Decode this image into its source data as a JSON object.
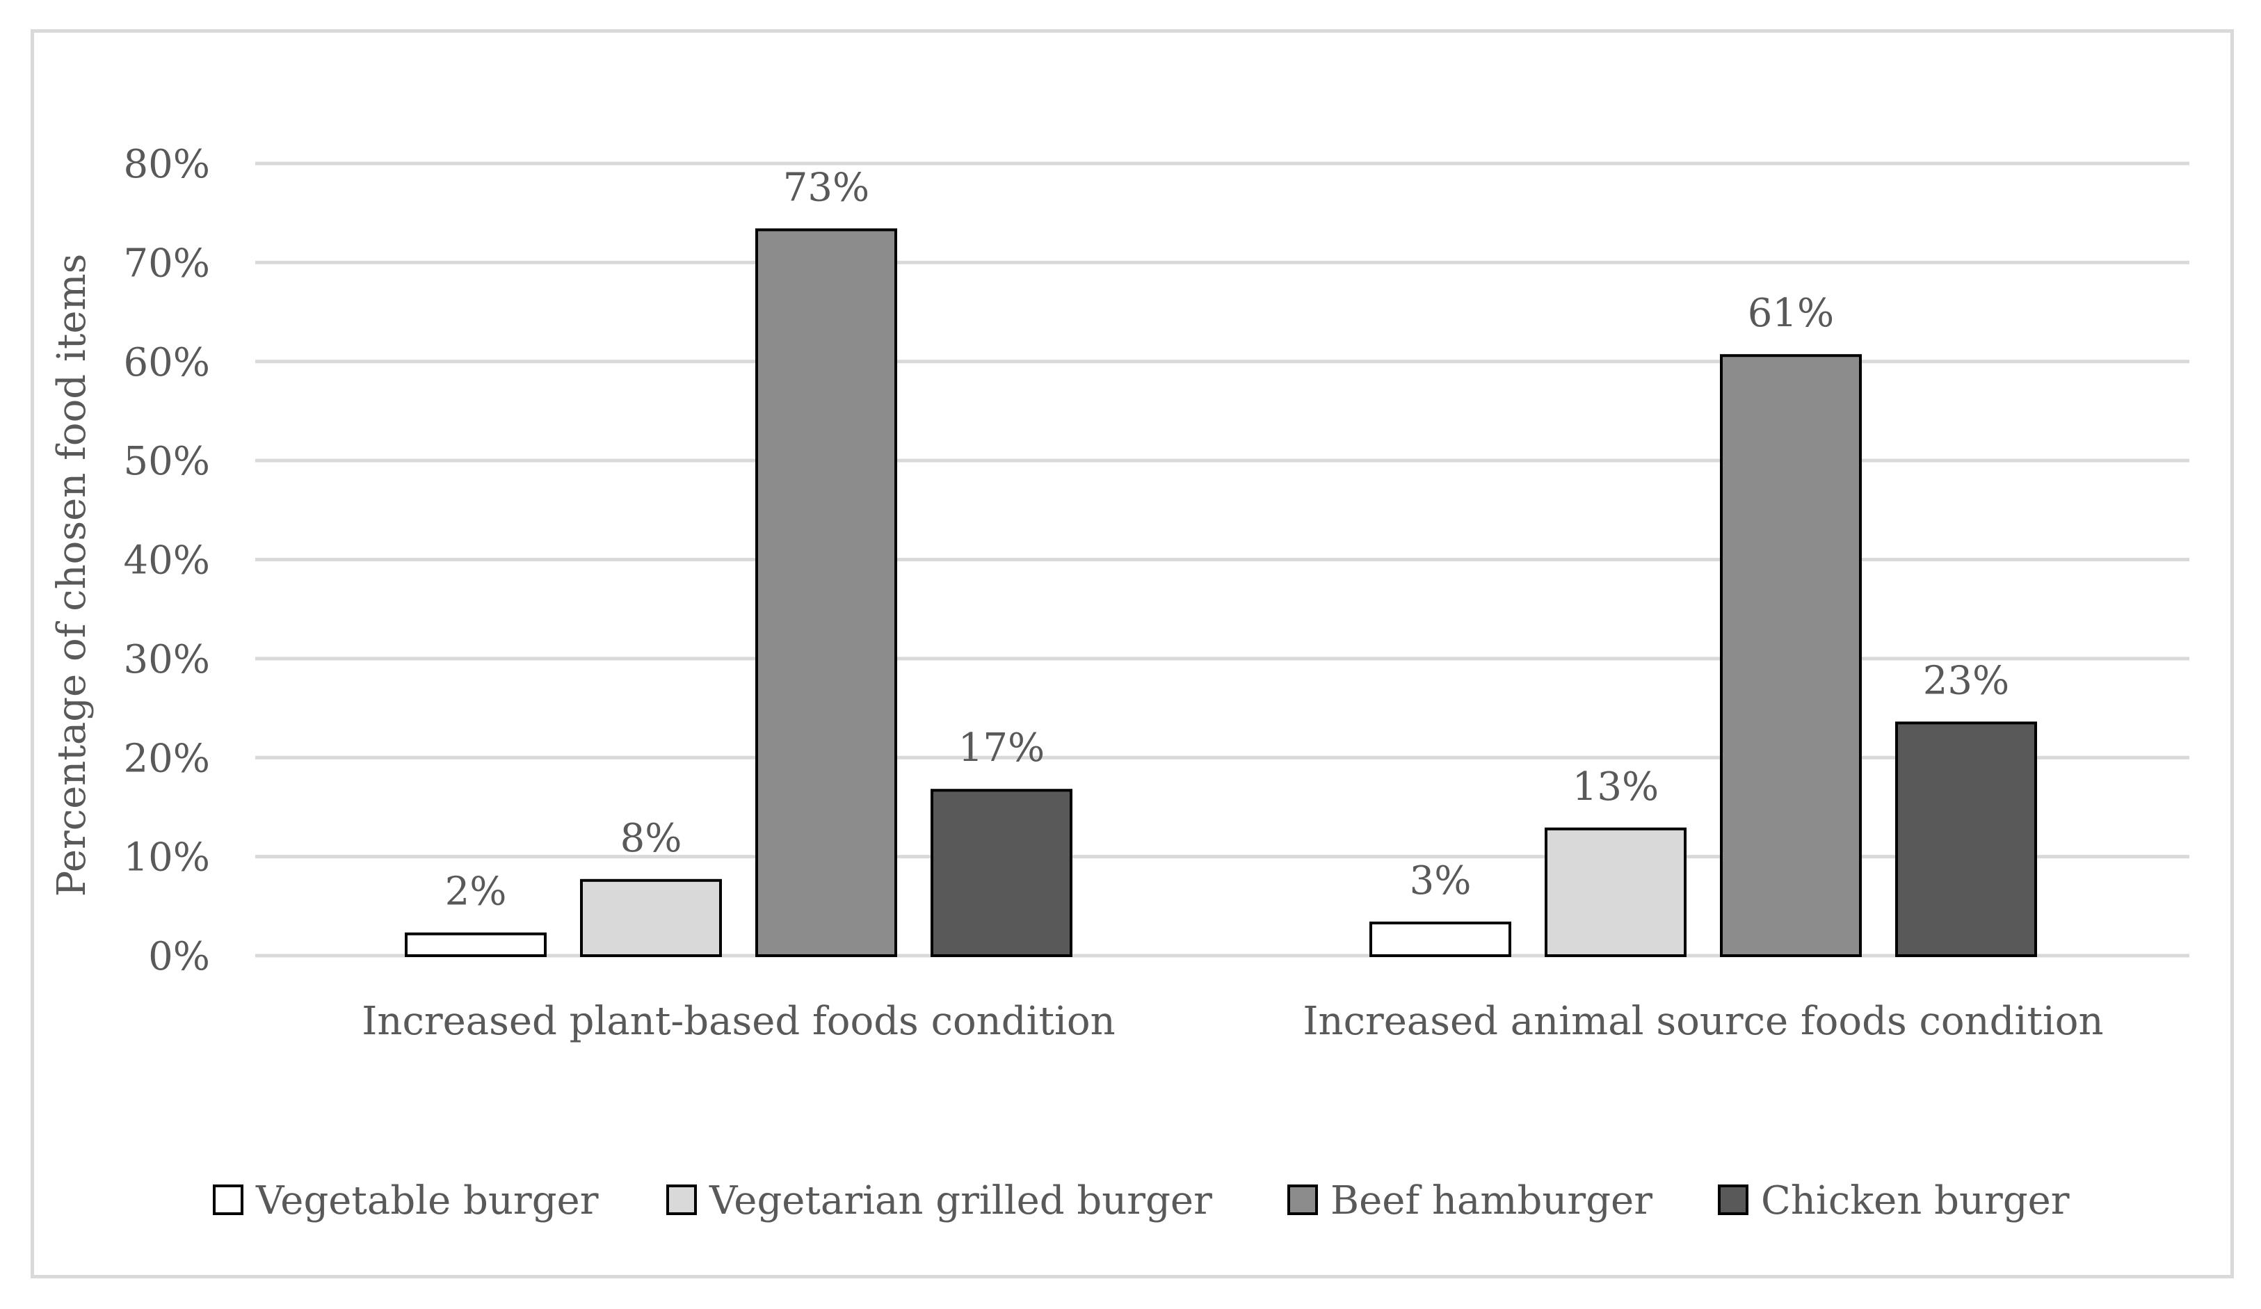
{
  "chart_data": {
    "type": "bar",
    "title": "",
    "xlabel": "",
    "ylabel": "Percentage of chosen food items",
    "ylim": [
      0,
      80
    ],
    "yticks": [
      0,
      10,
      20,
      30,
      40,
      50,
      60,
      70,
      80
    ],
    "ytick_labels": [
      "0%",
      "10%",
      "20%",
      "30%",
      "40%",
      "50%",
      "60%",
      "70%",
      "80%"
    ],
    "grid": true,
    "legend_position": "bottom",
    "categories": [
      "Increased plant-based foods condition",
      "Increased animal source foods condition"
    ],
    "series": [
      {
        "name": "Vegetable burger",
        "color": "#ffffff",
        "values": [
          2.2,
          3.3
        ],
        "labels": [
          "2%",
          "3%"
        ]
      },
      {
        "name": "Vegetarian grilled burger",
        "color": "#d9d9d9",
        "values": [
          7.6,
          12.8
        ],
        "labels": [
          "8%",
          "13%"
        ]
      },
      {
        "name": "Beef hamburger",
        "color": "#8c8c8c",
        "values": [
          73.3,
          60.6
        ],
        "labels": [
          "73%",
          "61%"
        ]
      },
      {
        "name": "Chicken burger",
        "color": "#595959",
        "values": [
          16.7,
          23.5
        ],
        "labels": [
          "17%",
          "23%"
        ]
      }
    ]
  }
}
